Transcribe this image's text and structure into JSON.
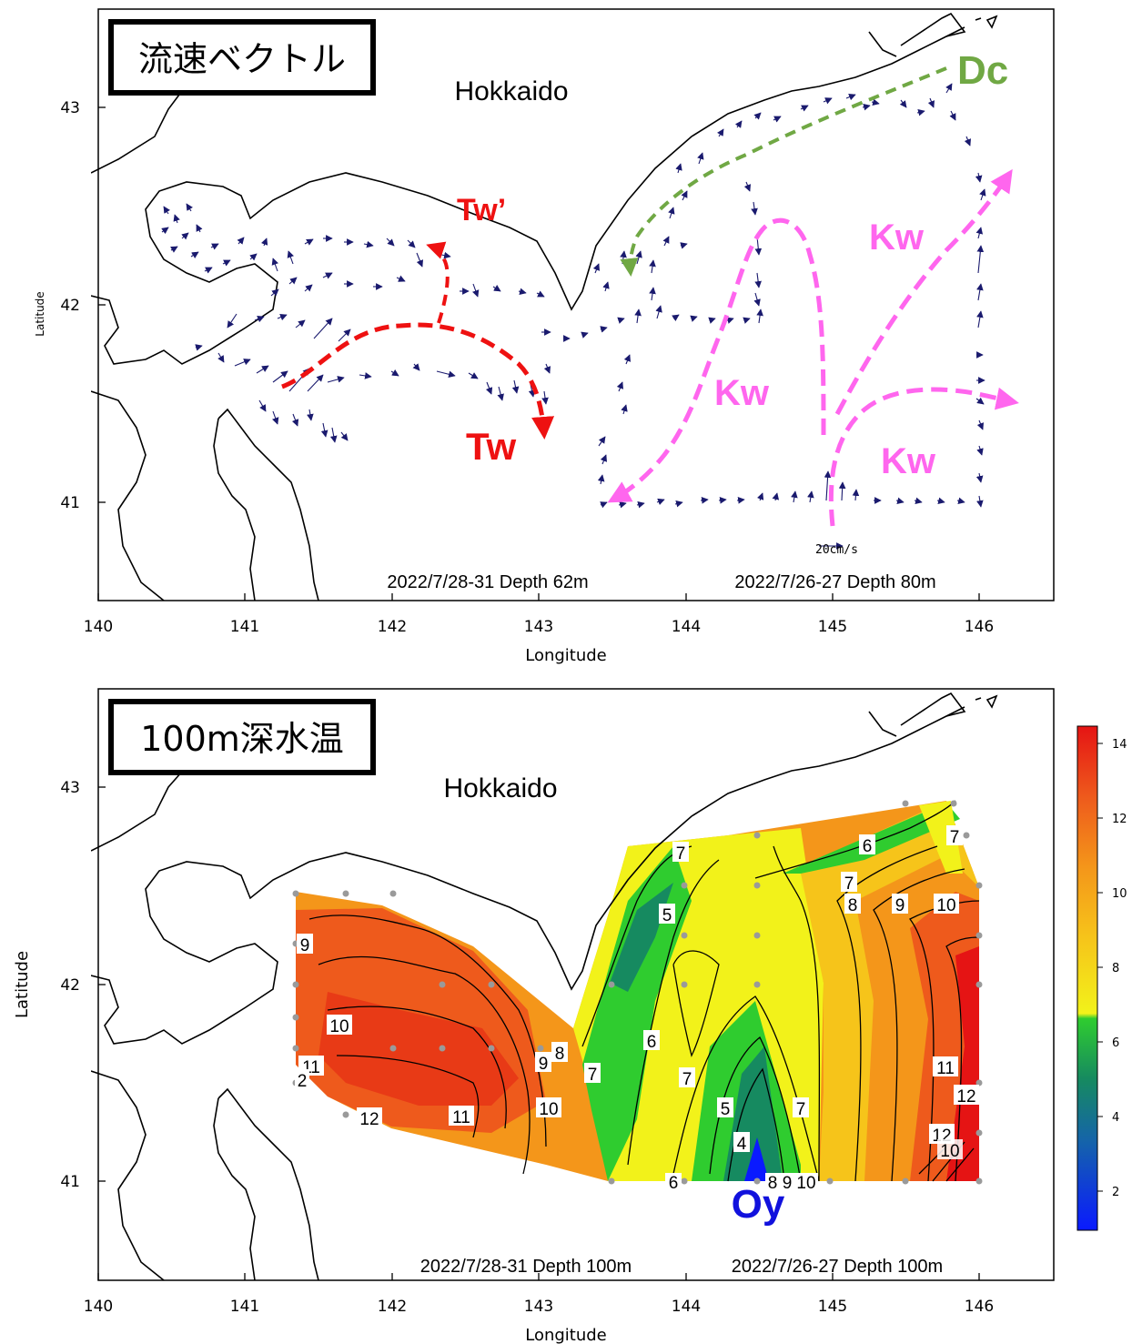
{
  "top_panel": {
    "title": "流速ベクトル",
    "region_label": "Hokkaido",
    "x_axis_label": "Longitude",
    "y_axis_label": "Latitude",
    "x_ticks": [
      "140",
      "141",
      "142",
      "143",
      "144",
      "145",
      "146"
    ],
    "y_ticks": [
      "41",
      "42",
      "43"
    ],
    "scale_label": "20cm/s",
    "footnote_left": "2022/7/28-31 Depth 62m",
    "footnote_right": "2022/7/26-27 Depth 80m",
    "current_labels": {
      "tw": "Tw",
      "tw_prime": "Tw’",
      "dc": "Dc",
      "kw1": "Kw",
      "kw2": "Kw",
      "kw3": "Kw"
    },
    "colors": {
      "tw": "#ee1111",
      "dc": "#70a844",
      "kw": "#ff66ee",
      "vector": "#1a1a6e"
    }
  },
  "bottom_panel": {
    "title": "100m深水温",
    "region_label": "Hokkaido",
    "x_axis_label": "Longitude",
    "y_axis_label": "Latitude",
    "x_ticks": [
      "140",
      "141",
      "142",
      "143",
      "144",
      "145",
      "146"
    ],
    "y_ticks": [
      "41",
      "42",
      "43"
    ],
    "footnote_left": "2022/7/28-31 Depth 100m",
    "footnote_right": "2022/7/26-27 Depth 100m",
    "water_mass_label": "Oy",
    "contour_labels": [
      "9",
      "10",
      "11",
      "2",
      "12",
      "11",
      "10",
      "9",
      "8",
      "7",
      "6",
      "7",
      "5",
      "4",
      "5",
      "7",
      "6",
      "7",
      "8",
      "9",
      "10",
      "11",
      "12",
      "12",
      "10",
      "6",
      "8",
      "9",
      "10",
      "7",
      "7"
    ],
    "colorbar_ticks": [
      "14",
      "12",
      "10",
      "8",
      "6",
      "4",
      "2"
    ],
    "colors": {
      "oy": "#1111dd"
    }
  }
}
